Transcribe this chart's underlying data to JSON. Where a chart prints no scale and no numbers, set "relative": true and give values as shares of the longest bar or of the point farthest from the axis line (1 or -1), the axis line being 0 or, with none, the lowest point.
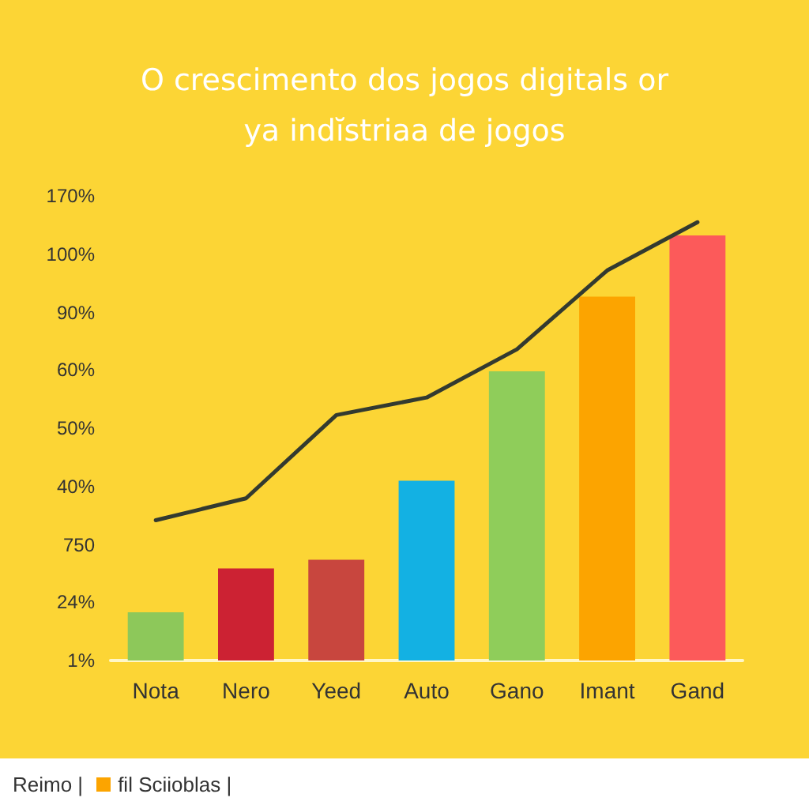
{
  "chart_data": {
    "type": "bar",
    "title": "O crescimento dos jogos digitals or\nya indĭstriaa de jogos",
    "relative": true,
    "categories": [
      "Nota",
      "Nero",
      "Yeed",
      "Auto",
      "Gano",
      "Imant",
      "Gand"
    ],
    "series": [
      {
        "colors": [
          "#8dc85a",
          "#cc2233",
          "#c8463e",
          "#13b1e3",
          "#8fcd5a",
          "#fca400",
          "#fc5a5a"
        ],
        "values": [
          0.11,
          0.21,
          0.23,
          0.41,
          0.66,
          0.83,
          0.97
        ]
      },
      {
        "type": "line",
        "color": "#333a30",
        "line_style": "solid",
        "marker": "none",
        "values": [
          0.32,
          0.37,
          0.56,
          0.6,
          0.71,
          0.89,
          1
        ]
      }
    ],
    "annotations": [
      "1%",
      "24%",
      "750",
      "40%",
      "50%",
      "60%",
      "90%",
      "100%",
      "170%",
      "Reimo |",
      "fil Sciioblas |"
    ]
  }
}
